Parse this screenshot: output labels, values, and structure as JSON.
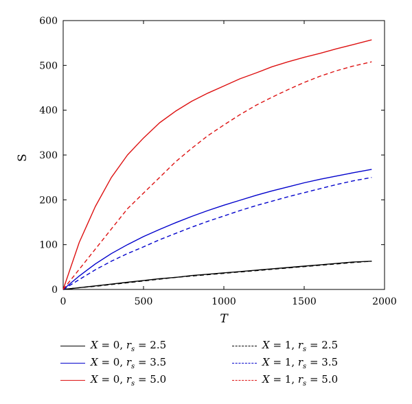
{
  "chart_data": {
    "type": "line",
    "title": "",
    "xlabel": "T",
    "ylabel": "S",
    "xlim": [
      0,
      2000
    ],
    "ylim": [
      0,
      600
    ],
    "xticks": [
      "0",
      "500",
      "1000",
      "1500",
      "2000"
    ],
    "yticks": [
      "0",
      "100",
      "200",
      "300",
      "400",
      "500",
      "600"
    ],
    "grid": false,
    "legend_position": "bottom",
    "x": [
      0,
      100,
      200,
      300,
      400,
      500,
      600,
      700,
      800,
      900,
      1000,
      1100,
      1200,
      1300,
      1400,
      1500,
      1600,
      1700,
      1800,
      1920
    ],
    "series": [
      {
        "name": "X = 0, r_s = 2.5",
        "color": "#000000",
        "dash": "solid",
        "values": [
          0,
          4,
          8,
          12,
          16,
          20,
          24,
          27,
          31,
          34,
          37,
          40,
          43,
          46,
          49,
          52,
          55,
          58,
          61,
          63
        ]
      },
      {
        "name": "X = 0, r_s = 3.5",
        "color": "#0000cc",
        "dash": "solid",
        "values": [
          0,
          30,
          57,
          80,
          100,
          118,
          134,
          149,
          163,
          176,
          188,
          199,
          210,
          220,
          229,
          238,
          246,
          253,
          260,
          268
        ]
      },
      {
        "name": "X = 0, r_s = 5.0",
        "color": "#dd1111",
        "dash": "solid",
        "values": [
          0,
          105,
          185,
          250,
          300,
          338,
          372,
          398,
          420,
          438,
          454,
          470,
          483,
          497,
          508,
          518,
          527,
          537,
          546,
          557
        ]
      },
      {
        "name": "X = 1, r_s = 2.5",
        "color": "#000000",
        "dash": "dashed",
        "values": [
          0,
          4,
          7,
          11,
          15,
          19,
          23,
          27,
          30,
          33,
          36,
          39,
          42,
          45,
          48,
          51,
          54,
          57,
          60,
          63
        ]
      },
      {
        "name": "X = 1, r_s = 3.5",
        "color": "#0000cc",
        "dash": "dashed",
        "values": [
          0,
          22,
          44,
          63,
          80,
          95,
          111,
          125,
          139,
          152,
          164,
          176,
          187,
          197,
          207,
          216,
          225,
          234,
          242,
          250
        ]
      },
      {
        "name": "X = 1, r_s = 5.0",
        "color": "#dd1111",
        "dash": "dashed",
        "values": [
          0,
          45,
          90,
          135,
          180,
          215,
          250,
          285,
          315,
          343,
          367,
          390,
          411,
          429,
          446,
          462,
          476,
          488,
          498,
          508
        ]
      }
    ],
    "legend": [
      {
        "var": "X",
        "eq1": " = 0, ",
        "sub_base": "r",
        "sub": "s",
        "eq2": " = 2.5"
      },
      {
        "var": "X",
        "eq1": " = 0, ",
        "sub_base": "r",
        "sub": "s",
        "eq2": " = 3.5"
      },
      {
        "var": "X",
        "eq1": " = 0, ",
        "sub_base": "r",
        "sub": "s",
        "eq2": " = 5.0"
      },
      {
        "var": "X",
        "eq1": " = 1, ",
        "sub_base": "r",
        "sub": "s",
        "eq2": " = 2.5"
      },
      {
        "var": "X",
        "eq1": " = 1, ",
        "sub_base": "r",
        "sub": "s",
        "eq2": " = 3.5"
      },
      {
        "var": "X",
        "eq1": " = 1, ",
        "sub_base": "r",
        "sub": "s",
        "eq2": " = 5.0"
      }
    ]
  }
}
